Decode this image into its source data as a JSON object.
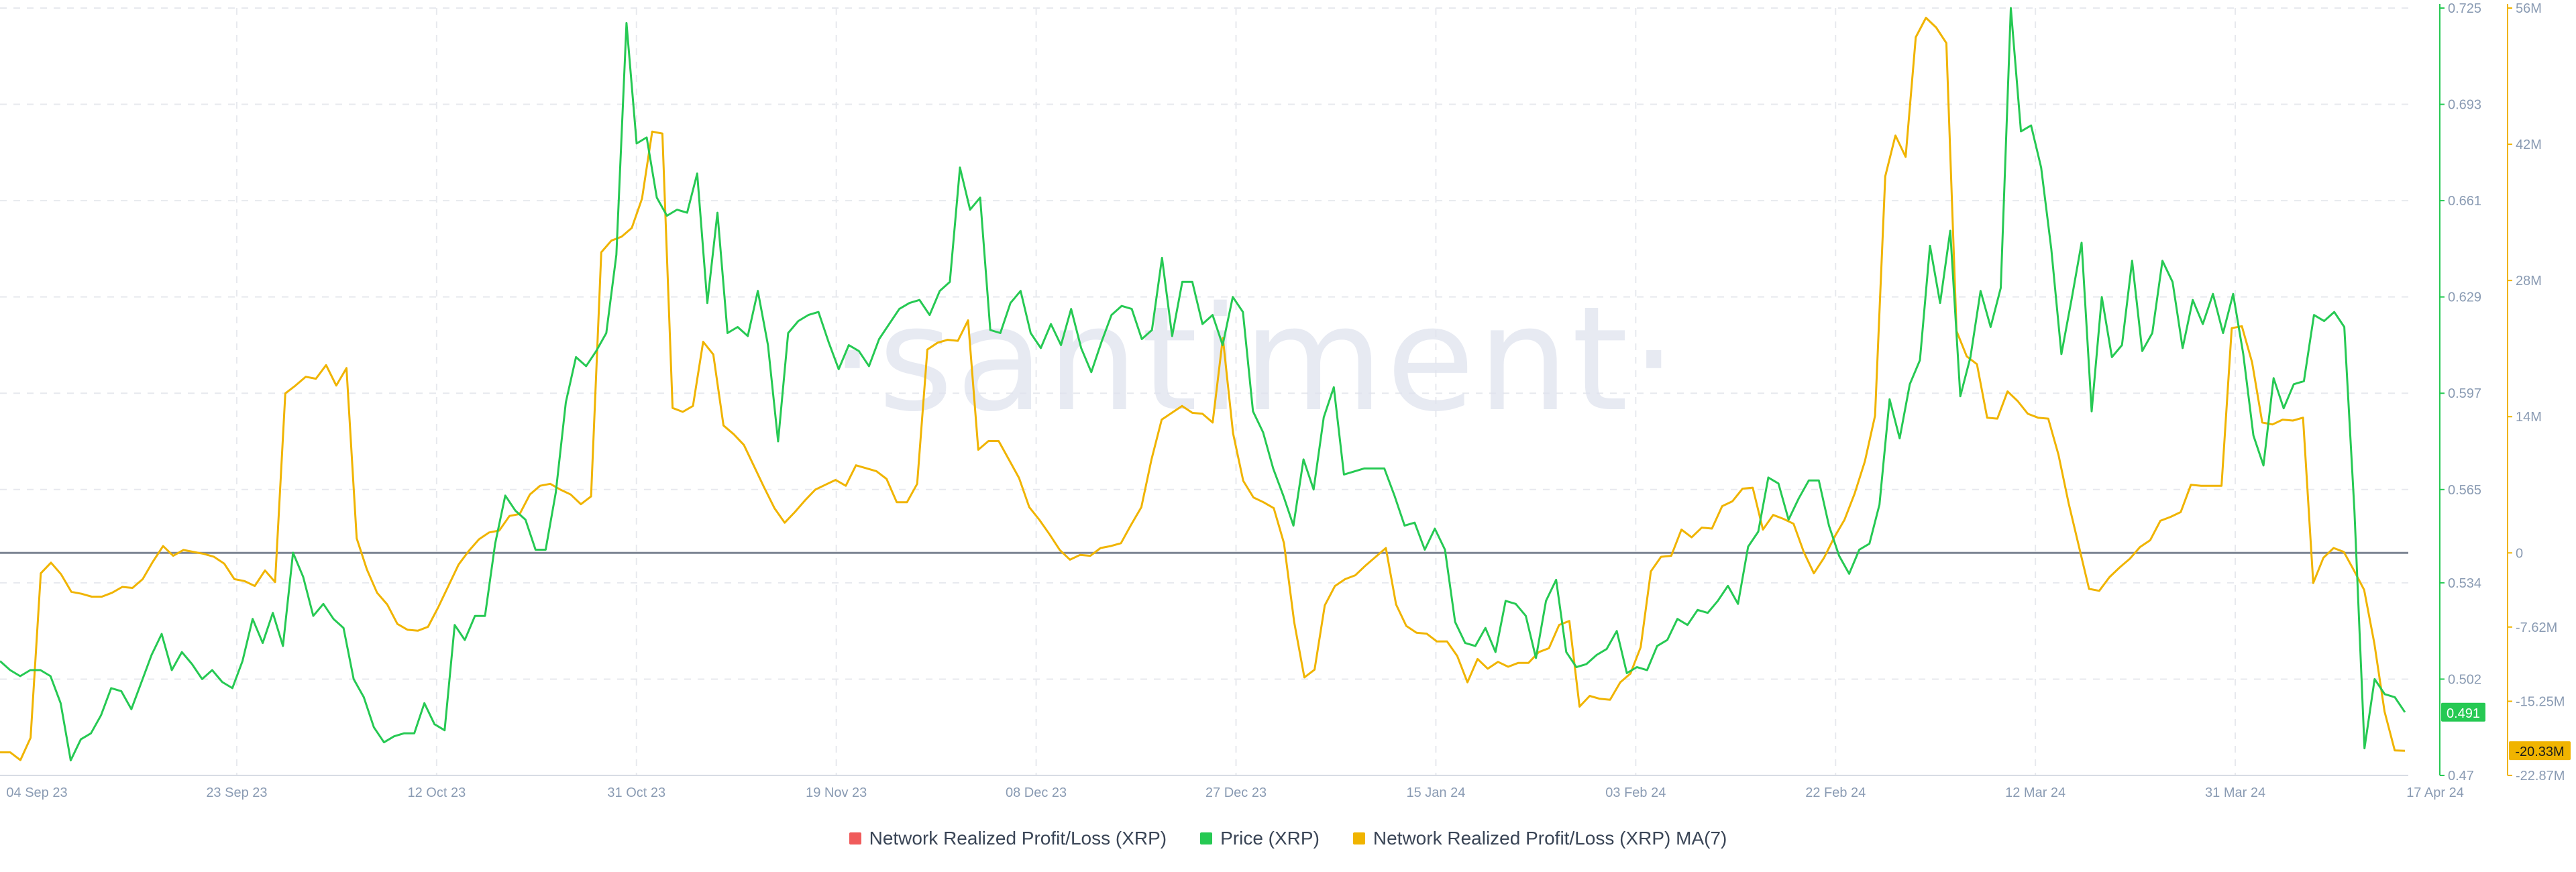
{
  "chart_data": {
    "type": "line",
    "watermark": "·santiment·",
    "x_ticks": [
      "04 Sep 23",
      "23 Sep 23",
      "12 Oct 23",
      "31 Oct 23",
      "19 Nov 23",
      "08 Dec 23",
      "27 Dec 23",
      "15 Jan 24",
      "03 Feb 24",
      "22 Feb 24",
      "12 Mar 24",
      "31 Mar 24",
      "17 Apr 24"
    ],
    "price_axis": {
      "ticks": [
        "0.725",
        "0.693",
        "0.661",
        "0.629",
        "0.597",
        "0.565",
        "0.534",
        "0.502",
        "0.47"
      ],
      "range": [
        0.47,
        0.725
      ],
      "color": "#26c953",
      "current_value": "0.491"
    },
    "pnl_axis": {
      "ticks": [
        "56M",
        "42M",
        "28M",
        "14M",
        "0",
        "-7.62M",
        "-15.25M",
        "-22.87M"
      ],
      "range": [
        -22.87,
        56
      ],
      "color": "#f0b400",
      "current_value": "-20.33M"
    },
    "series": [
      {
        "name": "Network Realized Profit/Loss (XRP)",
        "color": "#f05b5b",
        "values": []
      },
      {
        "name": "Price (XRP)",
        "color": "#26c953",
        "axis": "price",
        "values": [
          0.508,
          0.505,
          0.503,
          0.505,
          0.505,
          0.503,
          0.494,
          0.475,
          0.482,
          0.484,
          0.49,
          0.499,
          0.498,
          0.492,
          0.501,
          0.51,
          0.517,
          0.505,
          0.511,
          0.507,
          0.502,
          0.505,
          0.501,
          0.499,
          0.508,
          0.522,
          0.514,
          0.524,
          0.513,
          0.544,
          0.536,
          0.523,
          0.527,
          0.522,
          0.519,
          0.502,
          0.496,
          0.486,
          0.481,
          0.483,
          0.484,
          0.484,
          0.494,
          0.487,
          0.485,
          0.52,
          0.515,
          0.523,
          0.523,
          0.547,
          0.563,
          0.558,
          0.555,
          0.545,
          0.545,
          0.564,
          0.594,
          0.609,
          0.606,
          0.611,
          0.617,
          0.643,
          0.72,
          0.68,
          0.682,
          0.662,
          0.656,
          0.658,
          0.657,
          0.67,
          0.627,
          0.657,
          0.617,
          0.619,
          0.616,
          0.631,
          0.613,
          0.581,
          0.617,
          0.621,
          0.623,
          0.624,
          0.614,
          0.605,
          0.613,
          0.611,
          0.606,
          0.615,
          0.62,
          0.625,
          0.627,
          0.628,
          0.623,
          0.631,
          0.634,
          0.672,
          0.658,
          0.662,
          0.618,
          0.617,
          0.627,
          0.631,
          0.617,
          0.612,
          0.62,
          0.613,
          0.625,
          0.612,
          0.604,
          0.614,
          0.623,
          0.626,
          0.625,
          0.615,
          0.618,
          0.642,
          0.616,
          0.634,
          0.634,
          0.62,
          0.623,
          0.613,
          0.629,
          0.624,
          0.591,
          0.584,
          0.572,
          0.563,
          0.553,
          0.575,
          0.565,
          0.589,
          0.599,
          0.57,
          0.571,
          0.572,
          0.572,
          0.572,
          0.563,
          0.553,
          0.554,
          0.545,
          0.552,
          0.545,
          0.521,
          0.514,
          0.513,
          0.519,
          0.511,
          0.528,
          0.527,
          0.523,
          0.509,
          0.528,
          0.535,
          0.511,
          0.506,
          0.507,
          0.51,
          0.512,
          0.518,
          0.504,
          0.506,
          0.505,
          0.513,
          0.515,
          0.522,
          0.52,
          0.525,
          0.524,
          0.528,
          0.533,
          0.527,
          0.546,
          0.551,
          0.569,
          0.567,
          0.555,
          0.562,
          0.568,
          0.568,
          0.553,
          0.543,
          0.537,
          0.545,
          0.547,
          0.56,
          0.595,
          0.582,
          0.6,
          0.608,
          0.646,
          0.627,
          0.651,
          0.596,
          0.609,
          0.631,
          0.619,
          0.632,
          0.725,
          0.684,
          0.686,
          0.672,
          0.645,
          0.61,
          0.628,
          0.647,
          0.591,
          0.629,
          0.609,
          0.613,
          0.641,
          0.611,
          0.617,
          0.641,
          0.634,
          0.612,
          0.628,
          0.62,
          0.63,
          0.617,
          0.63,
          0.61,
          0.583,
          0.573,
          0.602,
          0.592,
          0.6,
          0.601,
          0.623,
          0.621,
          0.624,
          0.619,
          0.558,
          0.479,
          0.502,
          0.497,
          0.496,
          0.491
        ]
      },
      {
        "name": "Network Realized Profit/Loss (XRP) MA(7)",
        "color": "#f0b400",
        "axis": "pnl",
        "values": [
          -20.5,
          -20.5,
          -21.3,
          -19.0,
          -2.1,
          -1.0,
          -2.2,
          -4.0,
          -4.2,
          -4.5,
          -4.5,
          -4.1,
          -3.5,
          -3.6,
          -2.7,
          -0.9,
          0.7,
          -0.3,
          0.3,
          0.1,
          -0.1,
          -0.4,
          -1.1,
          -2.7,
          -2.9,
          -3.4,
          -1.8,
          -3.0,
          16.4,
          17.2,
          18.1,
          17.9,
          19.3,
          17.2,
          19.0,
          1.5,
          -1.7,
          -4.1,
          -5.3,
          -7.3,
          -7.9,
          -8.0,
          -7.6,
          -5.6,
          -3.4,
          -1.2,
          0.2,
          1.4,
          2.1,
          2.3,
          3.8,
          4.0,
          6.0,
          6.9,
          7.1,
          6.5,
          6.0,
          5.0,
          5.8,
          30.9,
          32.1,
          32.5,
          33.4,
          36.4,
          43.3,
          43.1,
          14.9,
          14.5,
          15.1,
          21.7,
          20.4,
          13.1,
          12.2,
          11.1,
          8.9,
          6.7,
          4.6,
          3.1,
          4.2,
          5.4,
          6.5,
          7.0,
          7.5,
          6.9,
          9.0,
          8.7,
          8.4,
          7.6,
          5.2,
          5.2,
          7.1,
          20.9,
          21.6,
          21.9,
          21.8,
          23.9,
          10.6,
          11.5,
          11.5,
          9.6,
          7.7,
          4.7,
          3.4,
          1.9,
          0.3,
          -0.7,
          -0.2,
          -0.3,
          0.5,
          0.7,
          1.0,
          2.9,
          4.7,
          9.6,
          13.7,
          14.4,
          15.1,
          14.4,
          14.3,
          13.4,
          22.1,
          12.3,
          7.4,
          5.7,
          5.2,
          4.6,
          1.0,
          -7.1,
          -12.8,
          -12.0,
          -5.4,
          -3.4,
          -2.7,
          -2.3,
          -1.3,
          -0.4,
          0.5,
          -5.3,
          -7.5,
          -8.2,
          -8.3,
          -9.1,
          -9.1,
          -10.6,
          -13.3,
          -10.9,
          -11.9,
          -11.2,
          -11.7,
          -11.3,
          -11.3,
          -10.2,
          -9.8,
          -7.4,
          -7.0,
          -15.8,
          -14.7,
          -15.0,
          -15.1,
          -13.3,
          -12.4,
          -9.7,
          -1.9,
          -0.4,
          -0.3,
          2.4,
          1.6,
          2.6,
          2.5,
          4.8,
          5.3,
          6.6,
          6.7,
          2.4,
          3.9,
          3.5,
          3.0,
          0.1,
          -2.1,
          -0.5,
          1.6,
          3.4,
          6.1,
          9.4,
          14.1,
          38.7,
          42.9,
          40.7,
          53.0,
          55.0,
          54.0,
          52.4,
          22.8,
          20.2,
          19.4,
          13.9,
          13.8,
          16.6,
          15.6,
          14.3,
          13.9,
          13.8,
          10.1,
          5.1,
          0.7,
          -3.7,
          -3.9,
          -2.5,
          -1.5,
          -0.6,
          0.6,
          1.3,
          3.3,
          3.7,
          4.2,
          7.0,
          6.9,
          6.9,
          6.9,
          23.1,
          23.3,
          19.6,
          13.4,
          13.2,
          13.7,
          13.6,
          13.9,
          -3.1,
          -0.5,
          0.5,
          0.1,
          -1.8,
          -3.8,
          -9.3,
          -16.3,
          -20.3,
          -20.33
        ]
      }
    ],
    "zero_line_value": 0
  },
  "legend": [
    {
      "label": "Network Realized Profit/Loss (XRP)",
      "color": "#f05b5b"
    },
    {
      "label": "Price (XRP)",
      "color": "#26c953"
    },
    {
      "label": "Network Realized Profit/Loss (XRP) MA(7)",
      "color": "#f0b400"
    }
  ]
}
